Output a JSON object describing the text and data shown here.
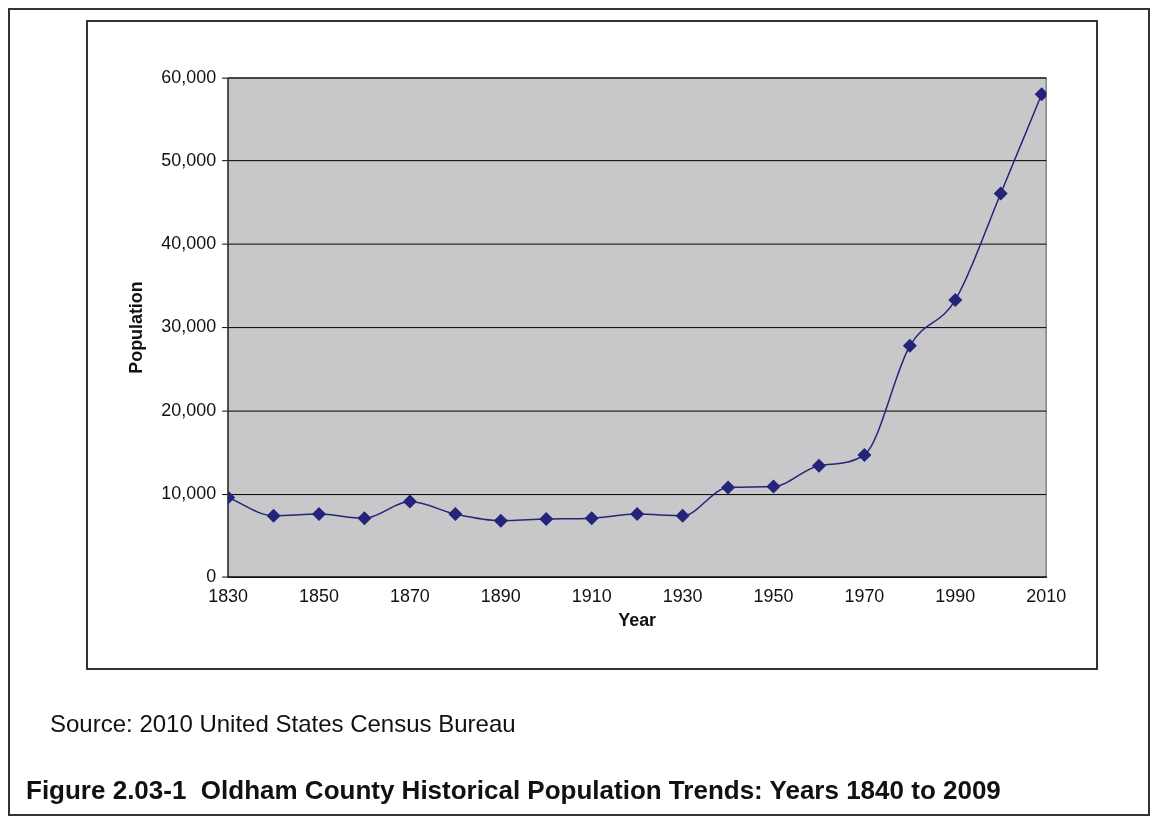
{
  "chart_data": {
    "type": "line",
    "title": "Figure 2.03-1  Oldham County Historical Population Trends: Years 1840 to 2009",
    "xlabel": "Year",
    "ylabel": "Population",
    "annotations": [
      "Source:  2010 United States Census Bureau"
    ],
    "x": [
      1830,
      1840,
      1850,
      1860,
      1870,
      1880,
      1890,
      1900,
      1910,
      1920,
      1930,
      1940,
      1950,
      1960,
      1970,
      1980,
      1990,
      2000,
      2009
    ],
    "series": [
      {
        "color": "#24247a",
        "values": [
          9600,
          7400,
          7600,
          7100,
          9100,
          7600,
          6800,
          7000,
          7100,
          7600,
          7400,
          10800,
          10900,
          13400,
          14700,
          27800,
          33300,
          46100,
          58000
        ]
      }
    ],
    "xlim": [
      1830,
      2010
    ],
    "xticks": [
      1830,
      1850,
      1870,
      1890,
      1910,
      1930,
      1950,
      1970,
      1990,
      2010
    ],
    "ylim": [
      0,
      60000
    ],
    "yticks": [
      0,
      {
        "value": 10000,
        "label": "10,000"
      },
      {
        "value": 20000,
        "label": "20,000"
      },
      {
        "value": 30000,
        "label": "30,000"
      },
      {
        "value": 40000,
        "label": "40,000"
      },
      {
        "value": 50000,
        "label": "50,000"
      },
      {
        "value": 60000,
        "label": "60,000"
      }
    ],
    "grid": "y",
    "legend": false,
    "marker": "diamond",
    "line_style": "solid"
  }
}
